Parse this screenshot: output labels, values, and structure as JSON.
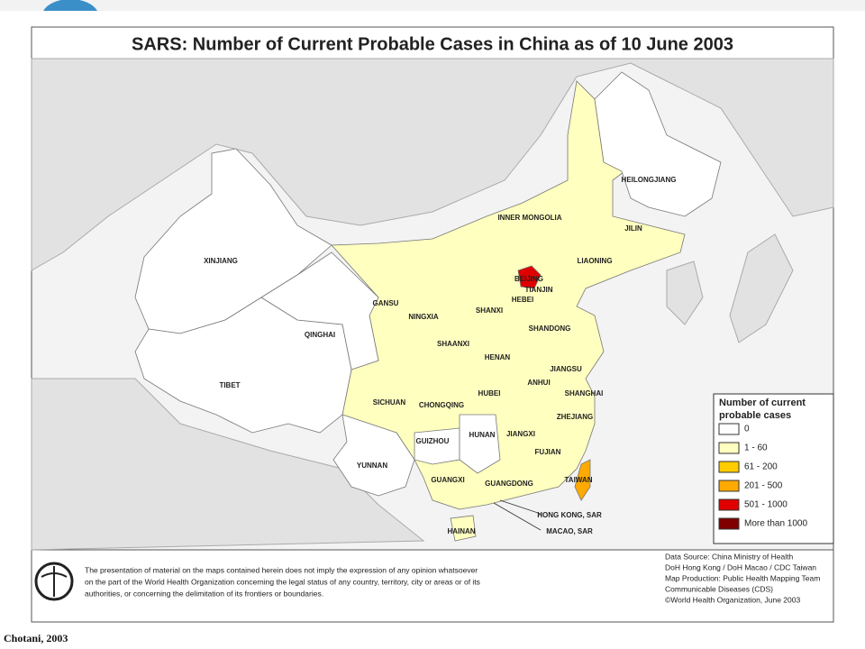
{
  "title": "SARS: Number of Current Probable Cases in China as of 10 June 2003",
  "regions": [
    "XINJIANG",
    "TIBET",
    "QINGHAI",
    "GANSU",
    "NINGXIA",
    "SHAANXI",
    "SHANXI",
    "INNER MONGOLIA",
    "HEILONGJIANG",
    "JILIN",
    "LIAONING",
    "BEIJING",
    "TIANJIN",
    "HEBEI",
    "SHANDONG",
    "HENAN",
    "JIANGSU",
    "ANHUI",
    "SHANGHAI",
    "HUBEI",
    "SICHUAN",
    "CHONGQING",
    "GUIZHOU",
    "HUNAN",
    "JIANGXI",
    "ZHEJIANG",
    "FUJIAN",
    "YUNNAN",
    "GUANGXI",
    "GUANGDONG",
    "TAIWAN",
    "HONG KONG, SAR",
    "MACAO, SAR",
    "HAINAN"
  ],
  "legend": {
    "title": [
      "Number of current",
      "probable cases"
    ],
    "entries": [
      {
        "label": "0",
        "color": "#ffffff"
      },
      {
        "label": "1 - 60",
        "color": "#ffffc0"
      },
      {
        "label": "61 - 200",
        "color": "#ffcc00"
      },
      {
        "label": "201 - 500",
        "color": "#ffaa00"
      },
      {
        "label": "501 - 1000",
        "color": "#e00000"
      },
      {
        "label": "More than 1000",
        "color": "#800000"
      }
    ]
  },
  "source": [
    "Data Source: China Ministry of Health",
    "DoH Hong Kong / DoH Macao / CDC Taiwan",
    "Map Production: Public Health Mapping Team",
    "Communicable Diseases (CDS)",
    "©World Health Organization, June 2003"
  ],
  "disclaimer": [
    "The presentation of material on the maps contained herein does not imply the expression of any opinion whatsoever",
    "on the part of the World Health Organization concerning the legal status of any country, territory, city or areas or of its",
    "authorities, or concerning the delimitation of its frontiers or boundaries."
  ],
  "footer": "Chotani, 2003"
}
